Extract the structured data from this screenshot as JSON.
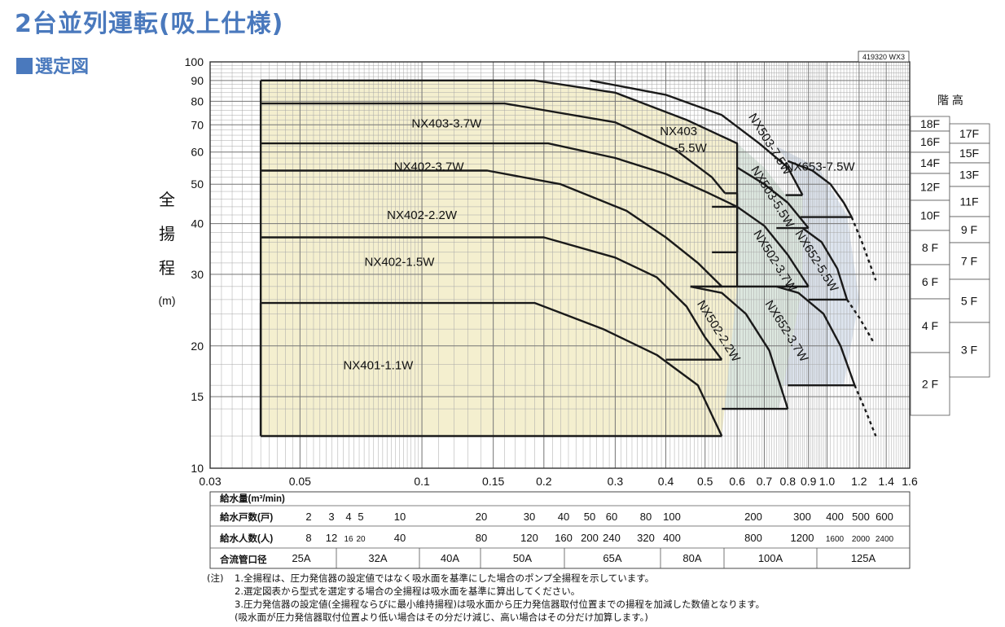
{
  "title": "2台並列運転(吸上仕様)",
  "section": "選定図",
  "code": "419320 WX3",
  "yaxis_label": [
    "全",
    "揚",
    "程"
  ],
  "yaxis_unit": "(m)",
  "floor_header": "階 高",
  "floors_left": [
    "18F",
    "16F",
    "14F",
    "12F",
    "10F",
    "8 F",
    "6 F",
    "4 F",
    "2 F"
  ],
  "floors_right": [
    "17F",
    "15F",
    "13F",
    "11F",
    "9 F",
    "7 F",
    "5 F",
    "3 F"
  ],
  "table": {
    "flow_label": "給水量(m³/min)",
    "households_label": "給水戸数(戸)",
    "households": [
      {
        "x": 0.05,
        "t": "2"
      },
      {
        "x": 0.06,
        "t": "3"
      },
      {
        "x": 0.07,
        "t": "4"
      },
      {
        "x": 0.077,
        "t": "5"
      },
      {
        "x": 0.1,
        "t": "10"
      },
      {
        "x": 0.2,
        "t": "20"
      },
      {
        "x": 0.3,
        "t": "30"
      },
      {
        "x": 0.4,
        "t": "40"
      },
      {
        "x": 0.5,
        "t": "50"
      },
      {
        "x": 0.6,
        "t": "60"
      },
      {
        "x": 0.8,
        "t": "80"
      },
      {
        "x": 1.0,
        "t": "100"
      },
      {
        "x": 2.0,
        "t": "200"
      },
      {
        "x": 3.0,
        "t": "300"
      },
      {
        "x": 4.0,
        "t": "400"
      },
      {
        "x": 5.0,
        "t": "500"
      },
      {
        "x": 6.0,
        "t": "600"
      }
    ],
    "people_label": "給水人数(人)",
    "people": [
      {
        "x": 0.05,
        "t": "8"
      },
      {
        "x": 0.06,
        "t": "12"
      },
      {
        "x": 0.07,
        "t": "16"
      },
      {
        "x": 0.077,
        "t": "20"
      },
      {
        "x": 0.1,
        "t": "40"
      },
      {
        "x": 0.2,
        "t": "80"
      },
      {
        "x": 0.3,
        "t": "120"
      },
      {
        "x": 0.4,
        "t": "160"
      },
      {
        "x": 0.5,
        "t": "200"
      },
      {
        "x": 0.6,
        "t": "240"
      },
      {
        "x": 0.8,
        "t": "320"
      },
      {
        "x": 1.0,
        "t": "400"
      },
      {
        "x": 2.0,
        "t": "800"
      },
      {
        "x": 3.0,
        "t": "1200"
      },
      {
        "x": 4.0,
        "t": "1600"
      },
      {
        "x": 5.0,
        "t": "2000"
      },
      {
        "x": 6.0,
        "t": "2400"
      }
    ],
    "pipe_label": "合流管口径",
    "pipes": [
      {
        "from": 0.03,
        "to": 0.093,
        "t": "25A"
      },
      {
        "from": 0.093,
        "to": 0.133,
        "t": "32A"
      },
      {
        "from": 0.133,
        "to": 0.17,
        "t": "40A"
      },
      {
        "from": 0.17,
        "to": 0.27,
        "t": "50A"
      },
      {
        "from": 0.27,
        "to": 0.4,
        "t": "65A"
      },
      {
        "from": 0.4,
        "to": 0.5,
        "t": "80A"
      },
      {
        "from": 0.5,
        "to": 0.85,
        "t": "100A"
      },
      {
        "from": 0.85,
        "to": 1.6,
        "t": "125A"
      }
    ]
  },
  "notes": {
    "lead": "(注)",
    "lines": [
      "1.全揚程は、圧力発信器の設定値ではなく吸水面を基準にした場合のポンプ全揚程を示しています。",
      "2.選定図表から型式を選定する場合の全揚程は吸水面を基準に算出してください。",
      "3.圧力発信器の設定値(全揚程ならびに最小維持揚程)は吸水面から圧力発信器取付位置までの揚程を加減した数値となります。",
      "(吸水面が圧力発信器取付位置より低い場合はその分だけ減じ、高い場合はその分だけ加算します。)"
    ]
  },
  "colors": {
    "cream": "#f4efcf",
    "teal": "#dce7df",
    "blue": "#dde4ee",
    "accent": "#4a79bd"
  },
  "chart_data": {
    "type": "area",
    "xscale": "log",
    "yscale": "log",
    "xlim": [
      0.03,
      1.6
    ],
    "ylim": [
      10,
      100
    ],
    "x_ticks": [
      {
        "v": 0.03,
        "t": "0.03"
      },
      {
        "v": 0.05,
        "t": "0.05"
      },
      {
        "v": 0.1,
        "t": "0.1"
      },
      {
        "v": 0.15,
        "t": "0.15"
      },
      {
        "v": 0.2,
        "t": "0.2"
      },
      {
        "v": 0.3,
        "t": "0.3"
      },
      {
        "v": 0.4,
        "t": "0.4"
      },
      {
        "v": 0.5,
        "t": "0.5"
      },
      {
        "v": 0.6,
        "t": "0.6"
      },
      {
        "v": 0.7,
        "t": "0.7"
      },
      {
        "v": 0.8,
        "t": "0.8"
      },
      {
        "v": 0.9,
        "t": "0.9"
      },
      {
        "v": 1.0,
        "t": "1.0"
      },
      {
        "v": 1.2,
        "t": "1.2"
      },
      {
        "v": 1.4,
        "t": "1.4"
      },
      {
        "v": 1.6,
        "t": "1.6"
      }
    ],
    "y_ticks": [
      10,
      15,
      20,
      30,
      40,
      50,
      60,
      70,
      80,
      90,
      100
    ],
    "grid": true,
    "cream_region": [
      [
        0.04,
        12
      ],
      [
        0.04,
        90
      ],
      [
        0.19,
        90
      ],
      [
        0.3,
        84
      ],
      [
        0.45,
        72
      ],
      [
        0.6,
        63
      ],
      [
        0.6,
        28
      ],
      [
        0.55,
        12
      ]
    ],
    "teal_region": [
      [
        0.19,
        90
      ],
      [
        0.3,
        84
      ],
      [
        0.45,
        72
      ],
      [
        0.6,
        63
      ],
      [
        0.7,
        55
      ],
      [
        0.79,
        47
      ],
      [
        0.87,
        47
      ],
      [
        0.87,
        28
      ],
      [
        0.76,
        14
      ],
      [
        0.46,
        14
      ],
      [
        0.41,
        18.5
      ],
      [
        0.55,
        18.5
      ]
    ],
    "blue_region": [
      [
        0.87,
        47
      ],
      [
        0.8,
        57
      ],
      [
        0.75,
        62
      ],
      [
        0.95,
        55
      ],
      [
        1.12,
        42
      ],
      [
        1.2,
        26
      ],
      [
        1.1,
        16
      ],
      [
        0.76,
        16
      ],
      [
        0.76,
        14
      ],
      [
        0.87,
        28
      ]
    ],
    "curves": [
      {
        "name": "NX401-1.1W",
        "pts": [
          [
            0.04,
            12
          ],
          [
            0.04,
            25.5
          ],
          [
            0.19,
            25.5
          ],
          [
            0.28,
            22
          ],
          [
            0.38,
            19
          ],
          [
            0.48,
            16
          ],
          [
            0.55,
            12
          ]
        ],
        "closed": true
      },
      {
        "name": "NX402-1.5W",
        "pts": [
          [
            0.04,
            37
          ],
          [
            0.2,
            37
          ],
          [
            0.3,
            33
          ],
          [
            0.38,
            29.5
          ],
          [
            0.45,
            25
          ],
          [
            0.5,
            21
          ],
          [
            0.55,
            18.5
          ]
        ],
        "flat_end": [
          0.4,
          18.5
        ]
      },
      {
        "name": "NX402-2.2W",
        "pts": [
          [
            0.04,
            54
          ],
          [
            0.145,
            54
          ],
          [
            0.22,
            50
          ],
          [
            0.32,
            43
          ],
          [
            0.4,
            37
          ],
          [
            0.48,
            32
          ],
          [
            0.55,
            28
          ]
        ],
        "flat_end": [
          0.46,
          28
        ]
      },
      {
        "name": "NX402-3.7W",
        "pts": [
          [
            0.04,
            63
          ],
          [
            0.205,
            63
          ],
          [
            0.3,
            58
          ],
          [
            0.4,
            53
          ],
          [
            0.5,
            48
          ],
          [
            0.6,
            44
          ]
        ],
        "flat_end": [
          0.52,
          44
        ]
      },
      {
        "name": "NX403-3.7W",
        "pts": [
          [
            0.04,
            79
          ],
          [
            0.16,
            79
          ],
          [
            0.3,
            71
          ],
          [
            0.42,
            61
          ],
          [
            0.52,
            52
          ],
          [
            0.56,
            47.5
          ]
        ],
        "flat_end": [
          0.6,
          47.5
        ]
      },
      {
        "name": "NX403-5.5W",
        "pts": [
          [
            0.04,
            90
          ],
          [
            0.19,
            90
          ],
          [
            0.3,
            84
          ],
          [
            0.45,
            72
          ],
          [
            0.6,
            63
          ],
          [
            0.6,
            28
          ]
        ]
      },
      {
        "name": "NX502-2.2W",
        "pts": [
          [
            0.46,
            28
          ],
          [
            0.55,
            27
          ],
          [
            0.63,
            24
          ],
          [
            0.72,
            19.5
          ],
          [
            0.8,
            14
          ]
        ],
        "flat_end": [
          0.55,
          14
        ]
      },
      {
        "name": "NX502-3.7W",
        "pts": [
          [
            0.6,
            44
          ],
          [
            0.7,
            39.5
          ],
          [
            0.8,
            33.5
          ],
          [
            0.9,
            28
          ]
        ],
        "flat_end": [
          0.52,
          28
        ]
      },
      {
        "name": "NX503-5.5W",
        "pts": [
          [
            0.6,
            55
          ],
          [
            0.7,
            50
          ],
          [
            0.8,
            45
          ],
          [
            0.9,
            39
          ]
        ],
        "flat_end": [
          0.75,
          39
        ]
      },
      {
        "name": "NX503-7.5W",
        "pts": [
          [
            0.26,
            90
          ],
          [
            0.4,
            83
          ],
          [
            0.55,
            74
          ],
          [
            0.68,
            63
          ],
          [
            0.8,
            55
          ],
          [
            0.87,
            47
          ]
        ],
        "flat_end": [
          0.79,
          47
        ]
      },
      {
        "name": "NX652-3.7W",
        "pts": [
          [
            0.75,
            28
          ],
          [
            0.85,
            27
          ],
          [
            0.98,
            24
          ],
          [
            1.08,
            20
          ],
          [
            1.17,
            16
          ]
        ],
        "flat_end": [
          0.8,
          16
        ]
      },
      {
        "name": "NX652-5.5W",
        "pts": [
          [
            0.87,
            39
          ],
          [
            0.97,
            36
          ],
          [
            1.06,
            31
          ],
          [
            1.12,
            26
          ]
        ],
        "flat_end": [
          0.9,
          26
        ]
      },
      {
        "name": "NX653-7.5W",
        "pts": [
          [
            0.8,
            57
          ],
          [
            0.92,
            54
          ],
          [
            1.02,
            50
          ],
          [
            1.1,
            45
          ],
          [
            1.15,
            41.5
          ]
        ],
        "flat_end": [
          0.86,
          41.5
        ]
      }
    ],
    "dashed": [
      [
        [
          1.15,
          41.5
        ],
        [
          1.22,
          36
        ],
        [
          1.32,
          29
        ]
      ],
      [
        [
          1.12,
          26
        ],
        [
          1.2,
          23.5
        ],
        [
          1.3,
          20.5
        ]
      ],
      [
        [
          1.17,
          16
        ],
        [
          1.24,
          14
        ],
        [
          1.32,
          12
        ]
      ]
    ],
    "labels": [
      {
        "t": "NX403-3.7W",
        "x": 0.115,
        "y": 69,
        "rot": 0
      },
      {
        "t": "NX403",
        "x": 0.43,
        "y": 66,
        "rot": 0
      },
      {
        "t": "-5.5W",
        "x": 0.46,
        "y": 60,
        "rot": 0
      },
      {
        "t": "NX402-3.7W",
        "x": 0.104,
        "y": 54,
        "rot": 0
      },
      {
        "t": "NX402-2.2W",
        "x": 0.1,
        "y": 41,
        "rot": 0
      },
      {
        "t": "NX402-1.5W",
        "x": 0.088,
        "y": 31.5,
        "rot": 0
      },
      {
        "t": "NX401-1.1W",
        "x": 0.078,
        "y": 17.5,
        "rot": 0
      },
      {
        "t": "NX503-7.5W",
        "x": 0.71,
        "y": 62,
        "rot": 58
      },
      {
        "t": "NX503-5.5W",
        "x": 0.72,
        "y": 46,
        "rot": 58
      },
      {
        "t": "NX502-3.7W",
        "x": 0.73,
        "y": 32,
        "rot": 58
      },
      {
        "t": "NX652-5.5W",
        "x": 0.925,
        "y": 32,
        "rot": 58
      },
      {
        "t": "NX502-2.2W",
        "x": 0.53,
        "y": 21.5,
        "rot": 58
      },
      {
        "t": "NX652-3.7W",
        "x": 0.78,
        "y": 21.5,
        "rot": 58
      },
      {
        "t": "NX653-7.5W",
        "x": 0.96,
        "y": 54,
        "rot": 0
      }
    ]
  }
}
